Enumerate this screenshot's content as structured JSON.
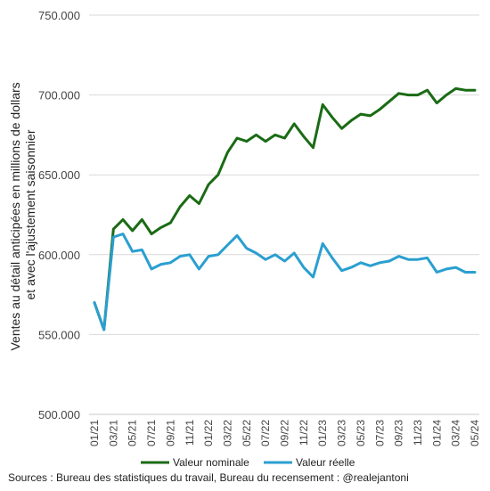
{
  "chart_data": {
    "type": "line",
    "ylabel_line1": "Ventes au détail anticipées en millions de dollars",
    "ylabel_line2": "et avec l'ajustement saisonnier",
    "ylim": [
      500000,
      750000
    ],
    "yticks": [
      {
        "value": 500000,
        "label": "500.000"
      },
      {
        "value": 550000,
        "label": "550.000"
      },
      {
        "value": 600000,
        "label": "600.000"
      },
      {
        "value": 650000,
        "label": "650.000"
      },
      {
        "value": 700000,
        "label": "700.000"
      },
      {
        "value": 750000,
        "label": "750.000"
      }
    ],
    "grid": "horizontal",
    "legend_position": "bottom",
    "x": [
      "01/21",
      "02/21",
      "03/21",
      "04/21",
      "05/21",
      "06/21",
      "07/21",
      "08/21",
      "09/21",
      "10/21",
      "11/21",
      "12/21",
      "01/22",
      "02/22",
      "03/22",
      "04/22",
      "05/22",
      "06/22",
      "07/22",
      "08/22",
      "09/22",
      "10/22",
      "11/22",
      "12/22",
      "01/23",
      "02/23",
      "03/23",
      "04/23",
      "05/23",
      "06/23",
      "07/23",
      "08/23",
      "09/23",
      "10/23",
      "11/23",
      "12/23",
      "01/24",
      "02/24",
      "03/24",
      "04/24",
      "05/24"
    ],
    "xtick_labels": [
      "01/21",
      "03/21",
      "05/21",
      "07/21",
      "09/21",
      "11/21",
      "01/22",
      "03/22",
      "05/22",
      "07/22",
      "09/22",
      "11/22",
      "01/23",
      "03/23",
      "05/23",
      "07/23",
      "09/23",
      "11/23",
      "01/24",
      "03/24",
      "05/24"
    ],
    "series": [
      {
        "name": "Valeur nominale",
        "color": "#1a6b14",
        "values": [
          570000,
          553000,
          616000,
          622000,
          615000,
          622000,
          613000,
          617000,
          620000,
          630000,
          637000,
          632000,
          644000,
          650000,
          664000,
          673000,
          671000,
          675000,
          671000,
          675000,
          673000,
          682000,
          674000,
          667000,
          694000,
          686000,
          679000,
          684000,
          688000,
          687000,
          691000,
          696000,
          701000,
          700000,
          700000,
          703000,
          695000,
          700000,
          704000,
          703000,
          703000
        ]
      },
      {
        "name": "Valeur réelle",
        "color": "#2a9fd0",
        "values": [
          570000,
          553000,
          611000,
          613000,
          602000,
          603000,
          591000,
          594000,
          595000,
          599000,
          600000,
          591000,
          599000,
          600000,
          606000,
          612000,
          604000,
          601000,
          597000,
          600000,
          596000,
          601000,
          592000,
          586000,
          607000,
          598000,
          590000,
          592000,
          595000,
          593000,
          595000,
          596000,
          599000,
          597000,
          597000,
          598000,
          589000,
          591000,
          592000,
          589000,
          589000
        ]
      }
    ],
    "source": "Sources : Bureau des statistiques du travail, Bureau du recensement : @realejantoni"
  }
}
